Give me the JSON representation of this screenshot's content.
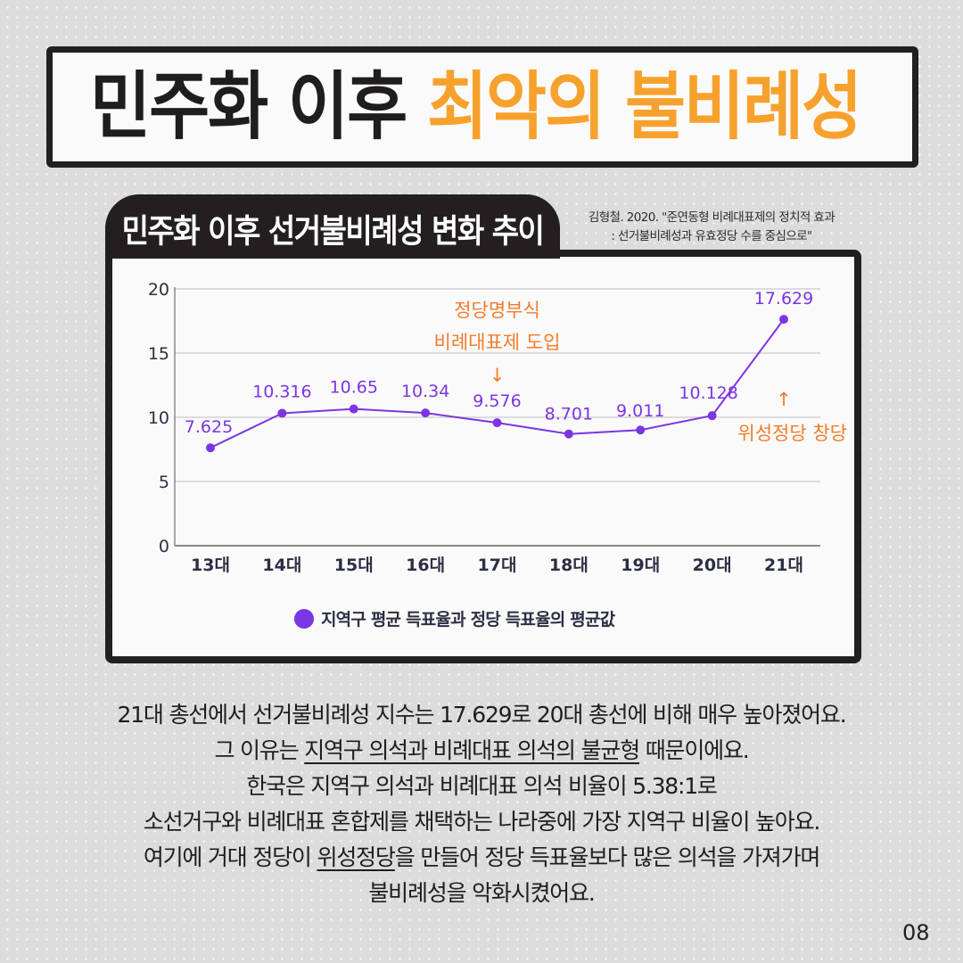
{
  "title": {
    "dark": "민주화 이후",
    "accent": "최악의 불비례성",
    "accent_color": "#f7a12d"
  },
  "chart_card": {
    "tab_title": "민주화 이후 선거불비례성 변화 추이",
    "source_line1": "김형철. 2020. \"준연동형 비례대표제의 정치적 효과",
    "source_line2": ": 선거불비례성과 유효정당 수를 중심으로\"",
    "legend_label": "지역구 평균 득표율과 정당 득표율의 평균값"
  },
  "chart_data": {
    "type": "line",
    "title": "민주화 이후 선거불비례성 변화 추이",
    "categories": [
      "13대",
      "14대",
      "15대",
      "16대",
      "17대",
      "18대",
      "19대",
      "20대",
      "21대"
    ],
    "series": [
      {
        "name": "지역구 평균 득표율과 정당 득표율의 평균값",
        "values": [
          7.625,
          10.316,
          10.65,
          10.34,
          9.576,
          8.701,
          9.011,
          10.128,
          17.629
        ],
        "labels": [
          "7.625",
          "10.316",
          "10.65",
          "10.34",
          "9.576",
          "8.701",
          "9.011",
          "10.128",
          "17.629"
        ],
        "color": "#7b35e3"
      }
    ],
    "xlabel": "",
    "ylabel": "",
    "ylim": [
      0,
      20
    ],
    "yticks": [
      "0",
      "5",
      "10",
      "15",
      "20"
    ],
    "grid": true,
    "legend_position": "bottom",
    "annotations": [
      {
        "text_line1": "정당명부식",
        "text_line2": "비례대표제 도입",
        "arrow": "↓",
        "target": "17대",
        "color": "#f47b2a"
      },
      {
        "text": "위성정당 창당",
        "arrow": "↑",
        "target": "21대",
        "color": "#f47b2a"
      }
    ]
  },
  "body": {
    "line1": "21대 총선에서 선거불비례성 지수는 17.629로 20대 총선에 비해 매우 높아졌어요.",
    "line2_pre": "그 이유는 ",
    "line2_underlined": "지역구 의석과 비례대표 의석의 불균형",
    "line2_post": " 때문이에요.",
    "line3": "한국은 지역구 의석과 비례대표 의석 비율이 5.38:1로",
    "line4": "소선거구와 비례대표 혼합제를 채택하는 나라중에 가장 지역구 비율이 높아요.",
    "line5_pre": "여기에 거대 정당이 ",
    "line5_underlined": "위성정당",
    "line5_post": "을 만들어 정당 득표율보다 많은 의석을 가져가며",
    "line6": "불비례성을 악화시켰어요."
  },
  "page_number": "08"
}
